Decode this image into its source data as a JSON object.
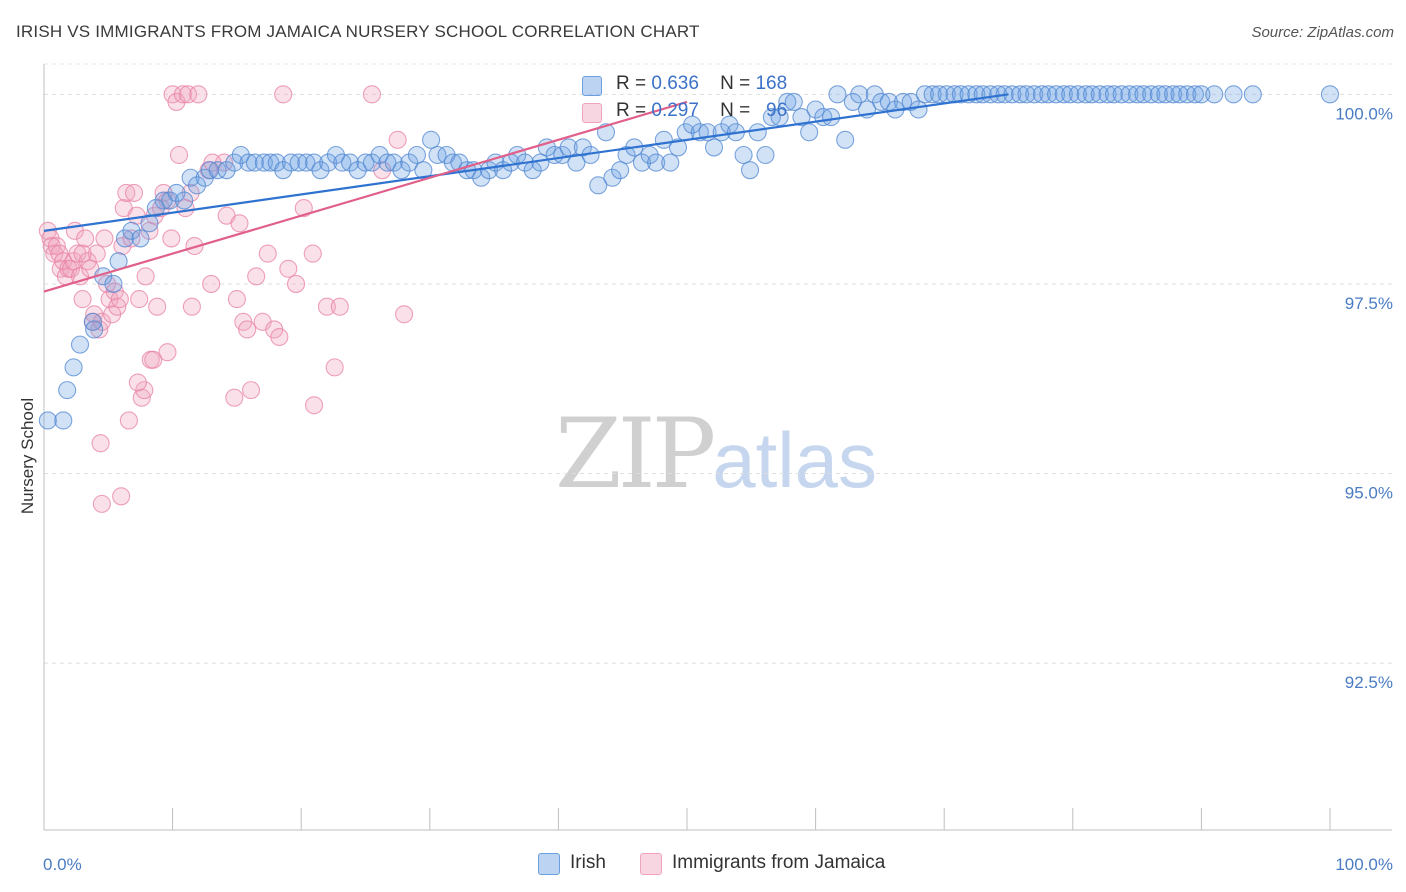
{
  "title": "IRISH VS IMMIGRANTS FROM JAMAICA NURSERY SCHOOL CORRELATION CHART",
  "source": "Source: ZipAtlas.com",
  "watermark": {
    "zip": "ZIP",
    "atlas": "atlas"
  },
  "colors": {
    "irish": "#6a9fe0",
    "irish_line": "#2f72d0",
    "jamaica": "#f0a3bd",
    "jamaica_line": "#e0608a",
    "tick_label": "#4a7cc4"
  },
  "stats": [
    {
      "r_label": "R =",
      "r_value": "0.636",
      "n_label": "N =",
      "n_value": "168"
    },
    {
      "r_label": "R =",
      "r_value": "0.297",
      "n_label": "N =",
      "n_value": "96"
    }
  ],
  "legend": [
    {
      "label": "Irish"
    },
    {
      "label": "Immigrants from Jamaica"
    }
  ],
  "chart_data": {
    "type": "scatter",
    "xlabel": "",
    "ylabel": "Nursery School",
    "xlim": [
      0,
      100
    ],
    "ylim": [
      90.3,
      100.4
    ],
    "x_tick_labels": [
      "0.0%",
      "100.0%"
    ],
    "y_ticks": [
      100.0,
      97.5,
      95.0,
      92.5
    ],
    "y_tick_labels": [
      "100.0%",
      "97.5%",
      "95.0%",
      "92.5%"
    ],
    "grid": true,
    "legend_position": "bottom",
    "series": [
      {
        "name": "Irish",
        "trend": [
          [
            0.0,
            98.2
          ],
          [
            75.0,
            100.0
          ]
        ],
        "points": [
          [
            0.3,
            95.7
          ],
          [
            1.5,
            95.7
          ],
          [
            1.8,
            96.1
          ],
          [
            2.3,
            96.4
          ],
          [
            2.8,
            96.7
          ],
          [
            3.8,
            97.0
          ],
          [
            3.9,
            96.9
          ],
          [
            4.6,
            97.6
          ],
          [
            5.4,
            97.5
          ],
          [
            5.8,
            97.8
          ],
          [
            6.3,
            98.1
          ],
          [
            6.8,
            98.2
          ],
          [
            7.5,
            98.1
          ],
          [
            8.2,
            98.3
          ],
          [
            8.7,
            98.5
          ],
          [
            9.3,
            98.6
          ],
          [
            9.8,
            98.6
          ],
          [
            10.3,
            98.7
          ],
          [
            10.9,
            98.6
          ],
          [
            11.4,
            98.9
          ],
          [
            11.9,
            98.8
          ],
          [
            12.5,
            98.9
          ],
          [
            12.9,
            99.0
          ],
          [
            13.5,
            99.0
          ],
          [
            14.2,
            99.0
          ],
          [
            14.8,
            99.1
          ],
          [
            15.3,
            99.2
          ],
          [
            15.9,
            99.1
          ],
          [
            16.4,
            99.1
          ],
          [
            17.1,
            99.1
          ],
          [
            17.6,
            99.1
          ],
          [
            18.1,
            99.1
          ],
          [
            18.6,
            99.0
          ],
          [
            19.2,
            99.1
          ],
          [
            19.8,
            99.1
          ],
          [
            20.4,
            99.1
          ],
          [
            21.0,
            99.1
          ],
          [
            21.5,
            99.0
          ],
          [
            22.1,
            99.1
          ],
          [
            22.7,
            99.2
          ],
          [
            23.2,
            99.1
          ],
          [
            23.8,
            99.1
          ],
          [
            24.4,
            99.0
          ],
          [
            25.0,
            99.1
          ],
          [
            25.5,
            99.1
          ],
          [
            26.1,
            99.2
          ],
          [
            26.7,
            99.1
          ],
          [
            27.2,
            99.1
          ],
          [
            27.8,
            99.0
          ],
          [
            28.4,
            99.1
          ],
          [
            29.0,
            99.2
          ],
          [
            29.5,
            99.0
          ],
          [
            30.1,
            99.4
          ],
          [
            30.6,
            99.2
          ],
          [
            31.3,
            99.2
          ],
          [
            31.8,
            99.1
          ],
          [
            32.3,
            99.1
          ],
          [
            32.9,
            99.0
          ],
          [
            33.4,
            99.0
          ],
          [
            34.0,
            98.9
          ],
          [
            34.6,
            99.0
          ],
          [
            35.1,
            99.1
          ],
          [
            35.7,
            99.0
          ],
          [
            36.3,
            99.1
          ],
          [
            36.8,
            99.2
          ],
          [
            37.4,
            99.1
          ],
          [
            38.0,
            99.0
          ],
          [
            38.6,
            99.1
          ],
          [
            39.1,
            99.3
          ],
          [
            39.7,
            99.2
          ],
          [
            40.3,
            99.2
          ],
          [
            40.8,
            99.3
          ],
          [
            41.4,
            99.1
          ],
          [
            41.9,
            99.3
          ],
          [
            42.5,
            99.2
          ],
          [
            43.1,
            98.8
          ],
          [
            43.7,
            99.5
          ],
          [
            44.2,
            98.9
          ],
          [
            44.8,
            99.0
          ],
          [
            45.3,
            99.2
          ],
          [
            45.9,
            99.3
          ],
          [
            46.5,
            99.1
          ],
          [
            47.1,
            99.2
          ],
          [
            47.6,
            99.1
          ],
          [
            48.2,
            99.4
          ],
          [
            48.7,
            99.1
          ],
          [
            49.3,
            99.3
          ],
          [
            49.9,
            99.5
          ],
          [
            50.4,
            99.6
          ],
          [
            51.0,
            99.5
          ],
          [
            51.6,
            99.5
          ],
          [
            52.1,
            99.3
          ],
          [
            52.7,
            99.5
          ],
          [
            53.3,
            99.6
          ],
          [
            53.8,
            99.5
          ],
          [
            54.4,
            99.2
          ],
          [
            54.9,
            99.0
          ],
          [
            55.5,
            99.5
          ],
          [
            56.1,
            99.2
          ],
          [
            56.6,
            99.7
          ],
          [
            57.2,
            99.7
          ],
          [
            57.8,
            99.9
          ],
          [
            58.3,
            99.9
          ],
          [
            58.9,
            99.7
          ],
          [
            59.5,
            99.5
          ],
          [
            60.0,
            99.8
          ],
          [
            60.6,
            99.7
          ],
          [
            61.2,
            99.7
          ],
          [
            61.7,
            100.0
          ],
          [
            62.3,
            99.4
          ],
          [
            62.9,
            99.9
          ],
          [
            63.4,
            100.0
          ],
          [
            64.0,
            99.8
          ],
          [
            64.6,
            100.0
          ],
          [
            65.1,
            99.9
          ],
          [
            65.7,
            99.9
          ],
          [
            66.2,
            99.8
          ],
          [
            66.8,
            99.9
          ],
          [
            67.4,
            99.9
          ],
          [
            68.0,
            99.8
          ],
          [
            68.5,
            100.0
          ],
          [
            69.1,
            100.0
          ],
          [
            69.6,
            100.0
          ],
          [
            70.2,
            100.0
          ],
          [
            70.8,
            100.0
          ],
          [
            71.3,
            100.0
          ],
          [
            71.9,
            100.0
          ],
          [
            72.5,
            100.0
          ],
          [
            73.0,
            100.0
          ],
          [
            73.6,
            100.0
          ],
          [
            74.2,
            100.0
          ],
          [
            74.7,
            100.0
          ],
          [
            75.3,
            100.0
          ],
          [
            75.9,
            100.0
          ],
          [
            76.4,
            100.0
          ],
          [
            77.0,
            100.0
          ],
          [
            77.6,
            100.0
          ],
          [
            78.1,
            100.0
          ],
          [
            78.7,
            100.0
          ],
          [
            79.3,
            100.0
          ],
          [
            79.8,
            100.0
          ],
          [
            80.4,
            100.0
          ],
          [
            81.0,
            100.0
          ],
          [
            81.5,
            100.0
          ],
          [
            82.1,
            100.0
          ],
          [
            82.7,
            100.0
          ],
          [
            83.2,
            100.0
          ],
          [
            83.8,
            100.0
          ],
          [
            84.4,
            100.0
          ],
          [
            85.0,
            100.0
          ],
          [
            85.5,
            100.0
          ],
          [
            86.1,
            100.0
          ],
          [
            86.7,
            100.0
          ],
          [
            87.2,
            100.0
          ],
          [
            87.8,
            100.0
          ],
          [
            88.3,
            100.0
          ],
          [
            88.9,
            100.0
          ],
          [
            89.5,
            100.0
          ],
          [
            90.0,
            100.0
          ],
          [
            91.0,
            100.0
          ],
          [
            92.5,
            100.0
          ],
          [
            94.0,
            100.0
          ],
          [
            100.0,
            100.0
          ]
        ]
      },
      {
        "name": "Immigrants from Jamaica",
        "trend": [
          [
            0.0,
            97.4
          ],
          [
            50.0,
            99.9
          ]
        ],
        "points": [
          [
            0.3,
            98.2
          ],
          [
            0.5,
            98.1
          ],
          [
            0.6,
            98.0
          ],
          [
            0.8,
            97.9
          ],
          [
            1.0,
            98.0
          ],
          [
            1.2,
            97.9
          ],
          [
            1.3,
            97.7
          ],
          [
            1.5,
            97.8
          ],
          [
            1.7,
            97.6
          ],
          [
            1.9,
            97.7
          ],
          [
            2.1,
            97.7
          ],
          [
            2.3,
            97.8
          ],
          [
            2.4,
            98.2
          ],
          [
            2.6,
            97.9
          ],
          [
            2.8,
            97.6
          ],
          [
            3.0,
            97.3
          ],
          [
            3.2,
            98.1
          ],
          [
            3.4,
            97.8
          ],
          [
            3.6,
            97.7
          ],
          [
            3.8,
            97.0
          ],
          [
            3.9,
            97.1
          ],
          [
            4.1,
            97.9
          ],
          [
            4.3,
            96.9
          ],
          [
            4.5,
            97.0
          ],
          [
            4.7,
            98.1
          ],
          [
            4.9,
            97.5
          ],
          [
            5.1,
            97.3
          ],
          [
            5.3,
            97.1
          ],
          [
            5.5,
            97.4
          ],
          [
            5.7,
            97.2
          ],
          [
            5.9,
            97.3
          ],
          [
            6.1,
            98.0
          ],
          [
            6.2,
            98.5
          ],
          [
            6.4,
            98.7
          ],
          [
            6.6,
            95.7
          ],
          [
            6.8,
            98.1
          ],
          [
            7.0,
            98.7
          ],
          [
            7.2,
            98.4
          ],
          [
            7.4,
            97.3
          ],
          [
            7.6,
            96.0
          ],
          [
            7.8,
            96.1
          ],
          [
            7.9,
            97.6
          ],
          [
            8.2,
            98.2
          ],
          [
            8.3,
            96.5
          ],
          [
            8.6,
            98.4
          ],
          [
            8.8,
            97.2
          ],
          [
            9.1,
            98.5
          ],
          [
            9.3,
            98.7
          ],
          [
            9.6,
            98.6
          ],
          [
            9.9,
            98.1
          ],
          [
            10.0,
            100.0
          ],
          [
            10.3,
            99.9
          ],
          [
            10.5,
            99.2
          ],
          [
            10.8,
            100.0
          ],
          [
            11.0,
            98.5
          ],
          [
            11.2,
            100.0
          ],
          [
            11.4,
            98.7
          ],
          [
            11.7,
            98.0
          ],
          [
            12.8,
            99.0
          ],
          [
            13.0,
            97.5
          ],
          [
            14.0,
            99.1
          ],
          [
            14.2,
            98.4
          ],
          [
            15.0,
            97.3
          ],
          [
            15.5,
            97.0
          ],
          [
            15.8,
            96.9
          ],
          [
            16.1,
            96.1
          ],
          [
            16.5,
            97.6
          ],
          [
            17.0,
            97.0
          ],
          [
            17.4,
            97.9
          ],
          [
            17.9,
            96.9
          ],
          [
            18.6,
            100.0
          ],
          [
            19.0,
            97.7
          ],
          [
            19.6,
            97.5
          ],
          [
            20.2,
            98.5
          ],
          [
            21.0,
            95.9
          ],
          [
            22.0,
            97.2
          ],
          [
            23.0,
            97.2
          ],
          [
            25.5,
            100.0
          ],
          [
            27.5,
            99.4
          ],
          [
            28.0,
            97.1
          ],
          [
            3.0,
            97.9
          ],
          [
            6.0,
            94.7
          ],
          [
            4.5,
            94.6
          ],
          [
            4.4,
            95.4
          ],
          [
            8.5,
            96.5
          ],
          [
            7.3,
            96.2
          ],
          [
            12.0,
            100.0
          ],
          [
            13.1,
            99.1
          ],
          [
            22.6,
            96.4
          ],
          [
            9.6,
            96.6
          ],
          [
            15.2,
            98.3
          ],
          [
            18.3,
            96.8
          ],
          [
            20.9,
            97.9
          ],
          [
            11.5,
            97.2
          ],
          [
            14.8,
            96.0
          ],
          [
            26.3,
            99.0
          ]
        ]
      }
    ]
  }
}
